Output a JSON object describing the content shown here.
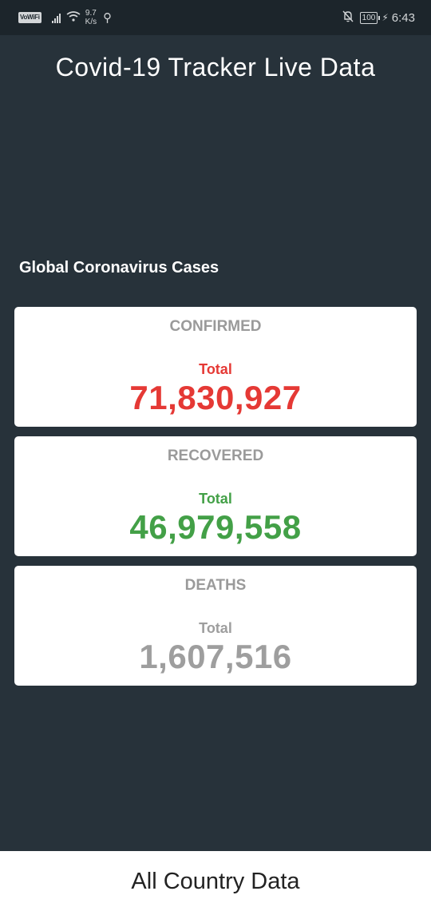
{
  "status_bar": {
    "vowifi": "VoWiFi",
    "speed_value": "9.7",
    "speed_unit": "K/s",
    "battery": "100",
    "time": "6:43"
  },
  "app": {
    "title": "Covid-19 Tracker Live Data"
  },
  "global": {
    "heading": "Global Coronavirus Cases",
    "cards": [
      {
        "title": "CONFIRMED",
        "sub": "Total",
        "value": "71,830,927",
        "color": "#e53935"
      },
      {
        "title": "RECOVERED",
        "sub": "Total",
        "value": "46,979,558",
        "color": "#43a047"
      },
      {
        "title": "DEATHS",
        "sub": "Total",
        "value": "1,607,516",
        "color": "#9e9e9e"
      }
    ]
  },
  "bottom": {
    "label": "All Country Data"
  }
}
